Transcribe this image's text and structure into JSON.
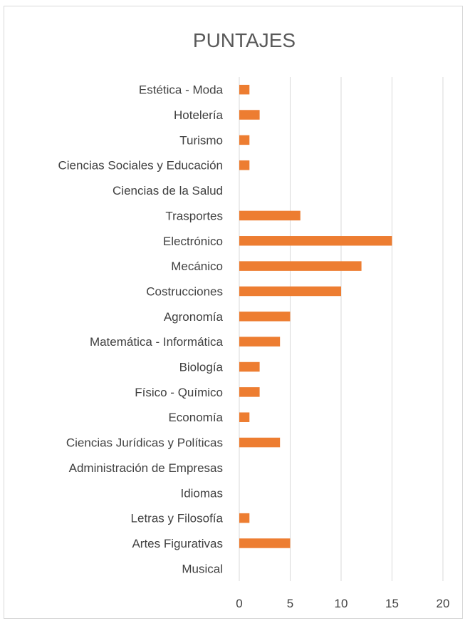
{
  "chart_data": {
    "type": "bar",
    "orientation": "horizontal",
    "title": "PUNTAJES",
    "xlabel": "",
    "ylabel": "",
    "xlim": [
      0,
      20
    ],
    "ticks": [
      0,
      5,
      10,
      15,
      20
    ],
    "grid": true,
    "bar_color": "#ed7d31",
    "categories": [
      "Estética - Moda",
      "Hotelería",
      "Turismo",
      "Ciencias Sociales y Educación",
      "Ciencias de la Salud",
      "Trasportes",
      "Electrónico",
      "Mecánico",
      "Costrucciones",
      "Agronomía",
      "Matemática - Informática",
      "Biología",
      "Físico - Químico",
      "Economía",
      "Ciencias Jurídicas y Políticas",
      "Administración de Empresas",
      "Idiomas",
      "Letras y Filosofía",
      "Artes Figurativas",
      "Musical"
    ],
    "values": [
      1,
      2,
      1,
      1,
      0,
      6,
      15,
      12,
      10,
      5,
      4,
      2,
      2,
      1,
      4,
      0,
      0,
      1,
      5,
      0
    ]
  }
}
